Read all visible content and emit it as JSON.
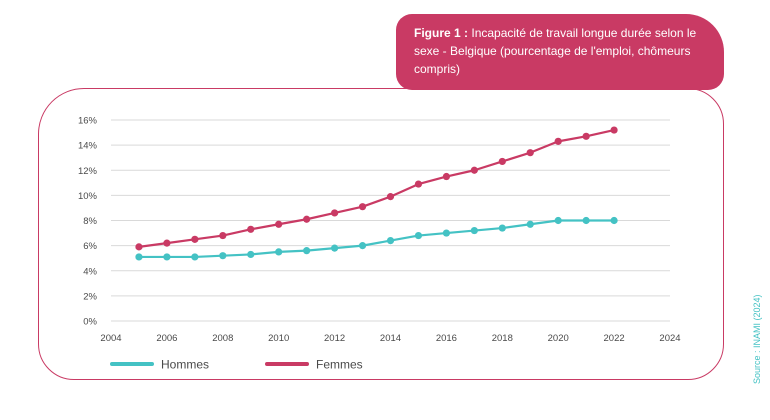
{
  "title_box": {
    "bold": "Figure 1 :",
    "text": "Incapacité de travail longue durée selon le sexe - Belgique (pourcentage de l'emploi, chômeurs compris)"
  },
  "source": "Source : INAMI (2024)",
  "colors": {
    "accent": "#c93a64",
    "hommes": "#44c2c4",
    "femmes": "#c93a64",
    "grid": "#d9d9d9"
  },
  "chart_data": {
    "type": "line",
    "title": "",
    "xlabel": "",
    "ylabel": "",
    "xlim": [
      2004,
      2024
    ],
    "ylim": [
      0,
      16
    ],
    "xticks": [
      2004,
      2006,
      2008,
      2010,
      2012,
      2014,
      2016,
      2018,
      2020,
      2022,
      2024
    ],
    "yticks": [
      0,
      2,
      4,
      6,
      8,
      10,
      12,
      14,
      16
    ],
    "ytick_labels": [
      "0%",
      "2%",
      "4%",
      "6%",
      "8%",
      "10%",
      "12%",
      "14%",
      "16%"
    ],
    "grid": "horizontal",
    "legend": "bottom-left",
    "x": [
      2005,
      2006,
      2007,
      2008,
      2009,
      2010,
      2011,
      2012,
      2013,
      2014,
      2015,
      2016,
      2017,
      2018,
      2019,
      2020,
      2021,
      2022
    ],
    "series": [
      {
        "name": "Hommes",
        "color": "#44c2c4",
        "values": [
          5.1,
          5.1,
          5.1,
          5.2,
          5.3,
          5.5,
          5.6,
          5.8,
          6.0,
          6.4,
          6.8,
          7.0,
          7.2,
          7.4,
          7.7,
          8.0,
          8.0,
          8.0
        ]
      },
      {
        "name": "Femmes",
        "color": "#c93a64",
        "values": [
          5.9,
          6.2,
          6.5,
          6.8,
          7.3,
          7.7,
          8.1,
          8.6,
          9.1,
          9.9,
          10.9,
          11.5,
          12.0,
          12.7,
          13.4,
          14.3,
          14.7,
          15.2
        ]
      }
    ]
  }
}
